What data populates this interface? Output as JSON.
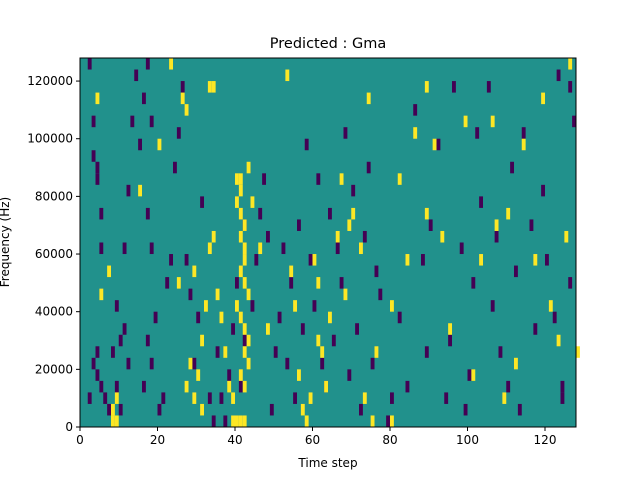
{
  "chart_data": {
    "type": "heatmap",
    "title": "Predicted : Gma",
    "xlabel": "Time step",
    "ylabel": "Frequency (Hz)",
    "xlim": [
      0,
      128
    ],
    "ylim": [
      0,
      128000
    ],
    "xticks": [
      0,
      20,
      40,
      60,
      80,
      100,
      120
    ],
    "yticks": [
      0,
      20000,
      40000,
      60000,
      80000,
      100000,
      120000
    ],
    "xtick_labels": [
      "0",
      "20",
      "40",
      "60",
      "80",
      "100",
      "120"
    ],
    "ytick_labels": [
      "0",
      "20000",
      "40000",
      "60000",
      "80000",
      "100000",
      "120000"
    ],
    "grid": false,
    "colormap": "viridis",
    "background_value": 0.5,
    "colors": {
      "low": "#440154",
      "mid": "#21918c",
      "high": "#fde725"
    },
    "cell_height_hz": 4000,
    "low_cells": [
      [
        2,
        124000
      ],
      [
        3,
        104000
      ],
      [
        3,
        92000
      ],
      [
        4,
        88000
      ],
      [
        4,
        84000
      ],
      [
        5,
        72000
      ],
      [
        5,
        60000
      ],
      [
        4,
        24000
      ],
      [
        3,
        20000
      ],
      [
        5,
        12000
      ],
      [
        6,
        8000
      ],
      [
        7,
        4000
      ],
      [
        2,
        8000
      ],
      [
        4,
        16000
      ],
      [
        9,
        12000
      ],
      [
        10,
        4000
      ],
      [
        8,
        24000
      ],
      [
        10,
        28000
      ],
      [
        11,
        32000
      ],
      [
        9,
        40000
      ],
      [
        12,
        20000
      ],
      [
        11,
        60000
      ],
      [
        12,
        80000
      ],
      [
        14,
        120000
      ],
      [
        16,
        112000
      ],
      [
        13,
        104000
      ],
      [
        15,
        96000
      ],
      [
        17,
        124000
      ],
      [
        18,
        20000
      ],
      [
        17,
        28000
      ],
      [
        16,
        12000
      ],
      [
        19,
        36000
      ],
      [
        18,
        60000
      ],
      [
        17,
        72000
      ],
      [
        18,
        104000
      ],
      [
        20,
        4000
      ],
      [
        21,
        8000
      ],
      [
        22,
        48000
      ],
      [
        23,
        56000
      ],
      [
        24,
        88000
      ],
      [
        25,
        100000
      ],
      [
        26,
        116000
      ],
      [
        27,
        56000
      ],
      [
        28,
        44000
      ],
      [
        29,
        20000
      ],
      [
        30,
        36000
      ],
      [
        31,
        76000
      ],
      [
        33,
        8000
      ],
      [
        34,
        0
      ],
      [
        35,
        24000
      ],
      [
        36,
        8000
      ],
      [
        37,
        0
      ],
      [
        38,
        16000
      ],
      [
        39,
        32000
      ],
      [
        40,
        48000
      ],
      [
        42,
        28000
      ],
      [
        41,
        12000
      ],
      [
        42,
        68000
      ],
      [
        44,
        40000
      ],
      [
        45,
        56000
      ],
      [
        46,
        72000
      ],
      [
        47,
        84000
      ],
      [
        48,
        64000
      ],
      [
        49,
        4000
      ],
      [
        50,
        24000
      ],
      [
        51,
        36000
      ],
      [
        52,
        60000
      ],
      [
        53,
        20000
      ],
      [
        54,
        48000
      ],
      [
        55,
        8000
      ],
      [
        56,
        68000
      ],
      [
        57,
        32000
      ],
      [
        58,
        96000
      ],
      [
        59,
        56000
      ],
      [
        60,
        40000
      ],
      [
        61,
        84000
      ],
      [
        62,
        20000
      ],
      [
        63,
        12000
      ],
      [
        64,
        72000
      ],
      [
        65,
        28000
      ],
      [
        66,
        60000
      ],
      [
        67,
        48000
      ],
      [
        68,
        100000
      ],
      [
        69,
        16000
      ],
      [
        70,
        80000
      ],
      [
        71,
        32000
      ],
      [
        72,
        4000
      ],
      [
        73,
        64000
      ],
      [
        74,
        88000
      ],
      [
        75,
        20000
      ],
      [
        76,
        52000
      ],
      [
        77,
        44000
      ],
      [
        79,
        0
      ],
      [
        80,
        8000
      ],
      [
        82,
        36000
      ],
      [
        84,
        12000
      ],
      [
        86,
        108000
      ],
      [
        88,
        56000
      ],
      [
        89,
        24000
      ],
      [
        90,
        68000
      ],
      [
        92,
        96000
      ],
      [
        94,
        8000
      ],
      [
        95,
        28000
      ],
      [
        96,
        116000
      ],
      [
        98,
        60000
      ],
      [
        99,
        4000
      ],
      [
        100,
        16000
      ],
      [
        101,
        48000
      ],
      [
        102,
        100000
      ],
      [
        103,
        76000
      ],
      [
        105,
        116000
      ],
      [
        106,
        40000
      ],
      [
        107,
        64000
      ],
      [
        108,
        24000
      ],
      [
        110,
        12000
      ],
      [
        111,
        88000
      ],
      [
        112,
        52000
      ],
      [
        114,
        100000
      ],
      [
        116,
        68000
      ],
      [
        117,
        32000
      ],
      [
        119,
        80000
      ],
      [
        120,
        56000
      ],
      [
        122,
        36000
      ],
      [
        123,
        120000
      ],
      [
        124,
        12000
      ],
      [
        126,
        48000
      ],
      [
        127,
        104000
      ],
      [
        126,
        116000
      ],
      [
        124,
        8000
      ],
      [
        113,
        4000
      ]
    ],
    "high_cells": [
      [
        23,
        124000
      ],
      [
        26,
        112000
      ],
      [
        27,
        108000
      ],
      [
        33,
        116000
      ],
      [
        29,
        8000
      ],
      [
        31,
        4000
      ],
      [
        30,
        16000
      ],
      [
        31,
        28000
      ],
      [
        32,
        40000
      ],
      [
        29,
        52000
      ],
      [
        33,
        60000
      ],
      [
        34,
        64000
      ],
      [
        35,
        44000
      ],
      [
        36,
        36000
      ],
      [
        37,
        24000
      ],
      [
        38,
        12000
      ],
      [
        39,
        8000
      ],
      [
        39,
        0
      ],
      [
        40,
        0
      ],
      [
        41,
        0
      ],
      [
        42,
        0
      ],
      [
        40,
        84000
      ],
      [
        41,
        84000
      ],
      [
        41,
        80000
      ],
      [
        40,
        76000
      ],
      [
        41,
        72000
      ],
      [
        42,
        68000
      ],
      [
        41,
        64000
      ],
      [
        42,
        60000
      ],
      [
        42,
        56000
      ],
      [
        41,
        52000
      ],
      [
        42,
        48000
      ],
      [
        41,
        36000
      ],
      [
        42,
        32000
      ],
      [
        43,
        28000
      ],
      [
        42,
        24000
      ],
      [
        43,
        20000
      ],
      [
        41,
        16000
      ],
      [
        42,
        12000
      ],
      [
        43,
        44000
      ],
      [
        43,
        88000
      ],
      [
        44,
        76000
      ],
      [
        40,
        40000
      ],
      [
        8,
        4000
      ],
      [
        9,
        0
      ],
      [
        8,
        0
      ],
      [
        9,
        8000
      ],
      [
        15,
        80000
      ],
      [
        4,
        112000
      ],
      [
        5,
        44000
      ],
      [
        7,
        52000
      ],
      [
        20,
        96000
      ],
      [
        25,
        48000
      ],
      [
        27,
        12000
      ],
      [
        28,
        20000
      ],
      [
        34,
        116000
      ],
      [
        46,
        60000
      ],
      [
        48,
        32000
      ],
      [
        54,
        52000
      ],
      [
        55,
        40000
      ],
      [
        56,
        16000
      ],
      [
        57,
        4000
      ],
      [
        58,
        0
      ],
      [
        59,
        8000
      ],
      [
        60,
        56000
      ],
      [
        61,
        28000
      ],
      [
        61,
        48000
      ],
      [
        62,
        24000
      ],
      [
        63,
        12000
      ],
      [
        64,
        36000
      ],
      [
        66,
        64000
      ],
      [
        67,
        84000
      ],
      [
        68,
        44000
      ],
      [
        69,
        68000
      ],
      [
        70,
        72000
      ],
      [
        72,
        60000
      ],
      [
        73,
        8000
      ],
      [
        74,
        112000
      ],
      [
        76,
        24000
      ],
      [
        80,
        40000
      ],
      [
        82,
        84000
      ],
      [
        84,
        56000
      ],
      [
        86,
        100000
      ],
      [
        89,
        72000
      ],
      [
        91,
        96000
      ],
      [
        93,
        64000
      ],
      [
        95,
        32000
      ],
      [
        99,
        104000
      ],
      [
        101,
        16000
      ],
      [
        103,
        56000
      ],
      [
        106,
        104000
      ],
      [
        107,
        68000
      ],
      [
        109,
        8000
      ],
      [
        110,
        72000
      ],
      [
        112,
        20000
      ],
      [
        114,
        96000
      ],
      [
        117,
        56000
      ],
      [
        119,
        112000
      ],
      [
        121,
        40000
      ],
      [
        123,
        28000
      ],
      [
        125,
        64000
      ],
      [
        126,
        124000
      ],
      [
        128,
        24000
      ],
      [
        89,
        116000
      ],
      [
        53,
        120000
      ],
      [
        80,
        0
      ],
      [
        75,
        0
      ]
    ]
  }
}
